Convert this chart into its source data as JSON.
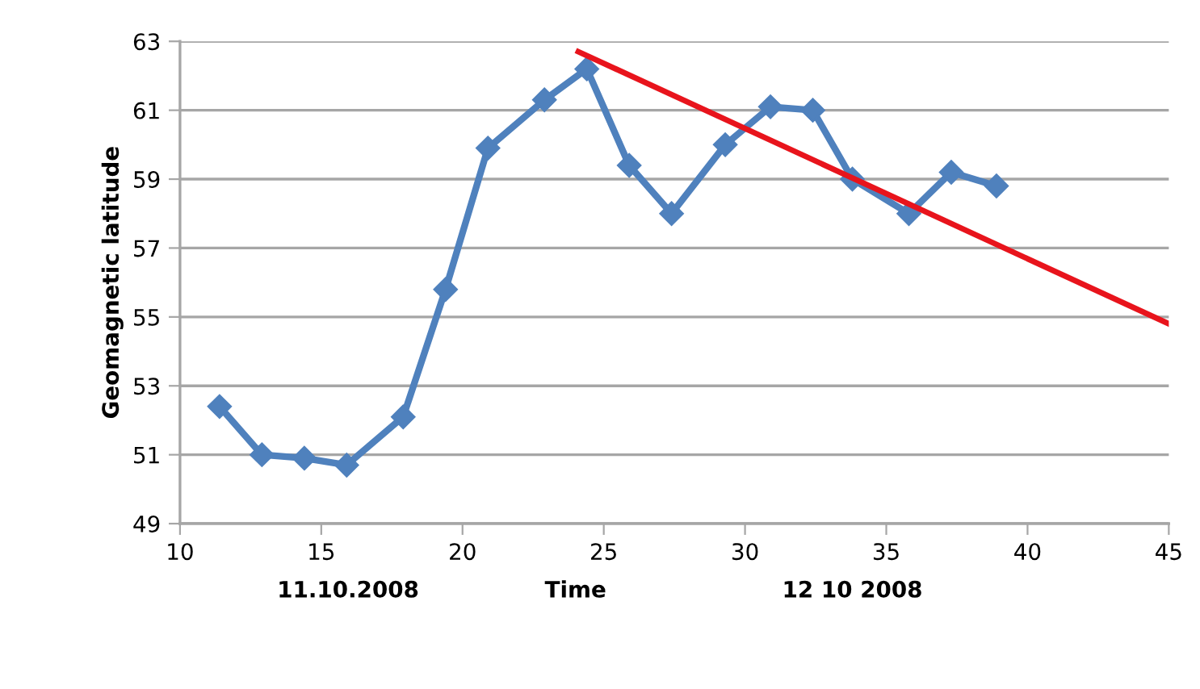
{
  "chart_data": {
    "type": "line",
    "xlabel": "Time",
    "ylabel": "Geomagnetic latitude",
    "annotations": [
      "11.10.2008",
      "12 10 2008"
    ],
    "series": [
      {
        "color": "#4f81bd",
        "marker": "diamond",
        "x": [
          11.4,
          12.9,
          14.4,
          15.9,
          17.9,
          19.4,
          20.9,
          22.9,
          24.4,
          25.9,
          27.4,
          29.3,
          30.9,
          32.4,
          33.8,
          35.8,
          37.3,
          38.9
        ],
        "values": [
          52.4,
          51.0,
          50.9,
          50.7,
          52.1,
          55.8,
          59.9,
          61.3,
          62.2,
          59.4,
          58.0,
          60.0,
          61.1,
          61.0,
          59.0,
          58.0,
          59.2,
          58.8
        ]
      },
      {
        "color": "#e8141c",
        "marker": "none",
        "x": [
          24.1,
          45
        ],
        "values": [
          62.7,
          54.8
        ]
      }
    ],
    "xlim": [
      10,
      45
    ],
    "xticks": [
      10,
      15,
      20,
      25,
      30,
      35,
      40,
      45
    ],
    "ylim": [
      49,
      63
    ],
    "yticks": [
      49,
      51,
      53,
      55,
      57,
      59,
      61,
      63
    ],
    "grid": "y",
    "line_style": "solid"
  }
}
